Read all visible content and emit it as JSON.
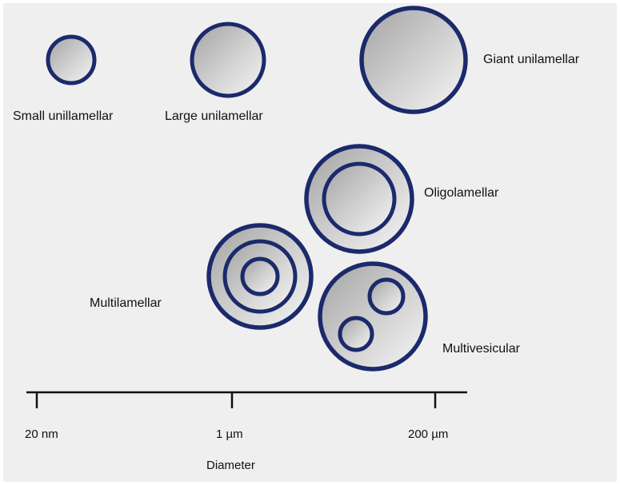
{
  "colors": {
    "background": "#efefef",
    "vesicle_stroke": "#1b2a6b",
    "vesicle_fill_light": "#f7f7f7",
    "vesicle_fill_dark": "#9d9d9d",
    "axis": "#111111"
  },
  "vesicles": {
    "small_unilamellar": "Small unillamellar",
    "large_unilamellar": "Large unilamellar",
    "giant_unilamellar": "Giant unilamellar",
    "oligolamellar": "Oligolamellar",
    "multilamellar": "Multilamellar",
    "multivesicular": "Multivesicular"
  },
  "axis": {
    "ticks": [
      "20 nm",
      "1 µm",
      "200 µm"
    ],
    "label": "Diameter"
  }
}
